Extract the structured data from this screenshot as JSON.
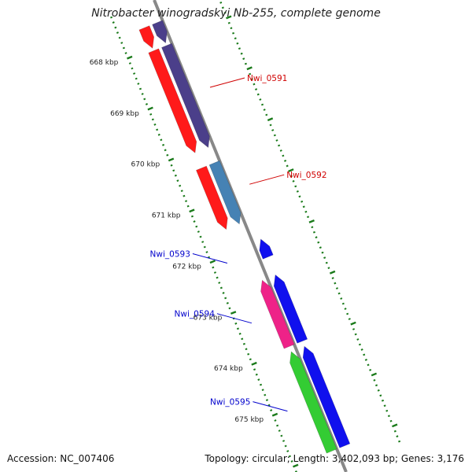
{
  "title": "Nitrobacter winogradskyi Nb-255, complete genome",
  "footer": {
    "accession": "Accession: NC_007406",
    "summary": "Topology: circular; Length: 3,402,093 bp; Genes: 3,176"
  },
  "colors": {
    "backbone": "#888888",
    "scale_dots": "#1a7a1a",
    "forward_label": "#d00000",
    "reverse_label": "#0000cc"
  },
  "scale": {
    "ticks": [
      {
        "kbp": 668,
        "label": "668 kbp"
      },
      {
        "kbp": 669,
        "label": "669 kbp"
      },
      {
        "kbp": 670,
        "label": "670 kbp"
      },
      {
        "kbp": 671,
        "label": "671 kbp"
      },
      {
        "kbp": 672,
        "label": "672 kbp"
      },
      {
        "kbp": 673,
        "label": "673 kbp"
      },
      {
        "kbp": 674,
        "label": "674 kbp"
      },
      {
        "kbp": 675,
        "label": "675 kbp"
      }
    ]
  },
  "genes": [
    {
      "label": "",
      "strand": "forward",
      "start_kbp": 667.6,
      "end_kbp": 668.0,
      "cds_color": "#ff1a1a",
      "gene_color": "#4b3f8a"
    },
    {
      "label": "Nwi_0591",
      "strand": "forward",
      "start_kbp": 668.05,
      "end_kbp": 670.05,
      "cds_color": "#ff1a1a",
      "gene_color": "#4b3f8a"
    },
    {
      "label": "Nwi_0592",
      "strand": "forward",
      "start_kbp": 670.35,
      "end_kbp": 671.55,
      "cds_color": "#ff1a1a",
      "gene_color": "#4682b4"
    },
    {
      "label": "Nwi_0593",
      "strand": "reverse",
      "start_kbp": 671.95,
      "end_kbp": 672.3,
      "cds_color": "#1010ee",
      "gene_color": ""
    },
    {
      "label": "Nwi_0594",
      "strand": "reverse",
      "start_kbp": 672.65,
      "end_kbp": 673.95,
      "cds_color": "#1010ee",
      "gene_color": "#ee2288"
    },
    {
      "label": "Nwi_0595",
      "strand": "reverse",
      "start_kbp": 674.05,
      "end_kbp": 676.0,
      "cds_color": "#1010ee",
      "gene_color": "#33cc33"
    }
  ]
}
